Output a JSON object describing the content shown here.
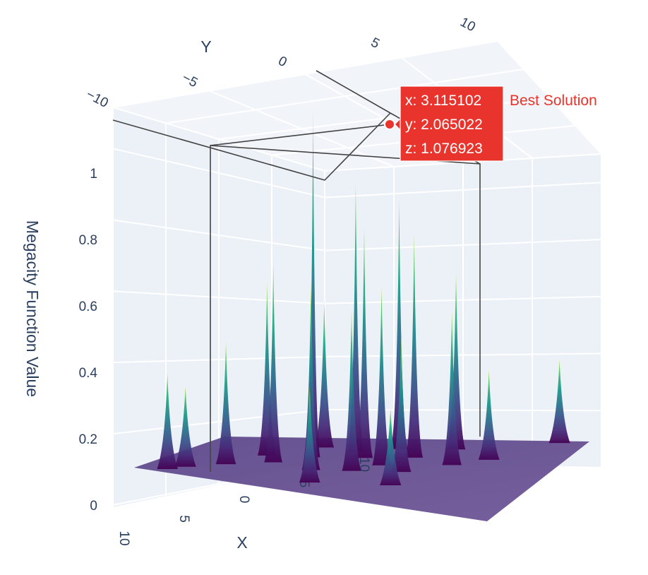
{
  "chart_data": {
    "type": "surface3d",
    "title": "",
    "axes": {
      "x": {
        "label": "X",
        "ticks": [
          "10",
          "5",
          "0",
          "−5",
          "−10"
        ]
      },
      "y": {
        "label": "Y",
        "ticks": [
          "−10",
          "−5",
          "0",
          "5",
          "10"
        ]
      },
      "z": {
        "label": "Megacity Function Value",
        "ticks": [
          "0",
          "0.2",
          "0.4",
          "0.6",
          "0.8",
          "1"
        ],
        "range": [
          0,
          1.1
        ]
      }
    },
    "colorscale": "viridis",
    "surface_base_value": 0.1,
    "peaks": [
      {
        "x": 3.1,
        "y": 2.1,
        "z": 1.08
      },
      {
        "x": 1.5,
        "y": 5.0,
        "z": 0.84
      },
      {
        "x": -0.5,
        "y": 6.5,
        "z": 0.78
      },
      {
        "x": 0.5,
        "y": 3.0,
        "z": 0.72
      },
      {
        "x": -2.0,
        "y": 4.0,
        "z": 0.7
      },
      {
        "x": 4.5,
        "y": -1.0,
        "z": 0.62
      },
      {
        "x": 2.0,
        "y": -2.5,
        "z": 0.58
      },
      {
        "x": -1.0,
        "y": 1.0,
        "z": 0.56
      },
      {
        "x": -3.5,
        "y": 7.0,
        "z": 0.55
      },
      {
        "x": 5.5,
        "y": 1.5,
        "z": 0.54
      },
      {
        "x": 0.0,
        "y": -1.5,
        "z": 0.5
      },
      {
        "x": -4.5,
        "y": 2.5,
        "z": 0.48
      },
      {
        "x": 3.5,
        "y": 6.0,
        "z": 0.46
      },
      {
        "x": -2.5,
        "y": -0.5,
        "z": 0.42
      },
      {
        "x": 6.5,
        "y": -3.5,
        "z": 0.38
      },
      {
        "x": 8.5,
        "y": -8.5,
        "z": 0.3
      },
      {
        "x": 8.0,
        "y": -6.5,
        "z": 0.25
      },
      {
        "x": 1.0,
        "y": -6.5,
        "z": 0.3
      },
      {
        "x": -3.0,
        "y": -4.5,
        "z": 0.24
      },
      {
        "x": -6.0,
        "y": 4.5,
        "z": 0.28
      },
      {
        "x": -8.5,
        "y": 9.5,
        "z": 0.26
      }
    ],
    "best_solution": {
      "name": "Best Solution",
      "x": 3.115102,
      "y": 2.065022,
      "z": 1.076923,
      "label_lines": [
        "x: 3.115102",
        "y: 2.065022",
        "z: 1.076923"
      ],
      "color": "#e8342c"
    },
    "colors": {
      "scene_bg": "#e5ecf6",
      "grid": "#ffffff",
      "axis_text": "#2a3f5f",
      "spike": "#444444"
    }
  }
}
